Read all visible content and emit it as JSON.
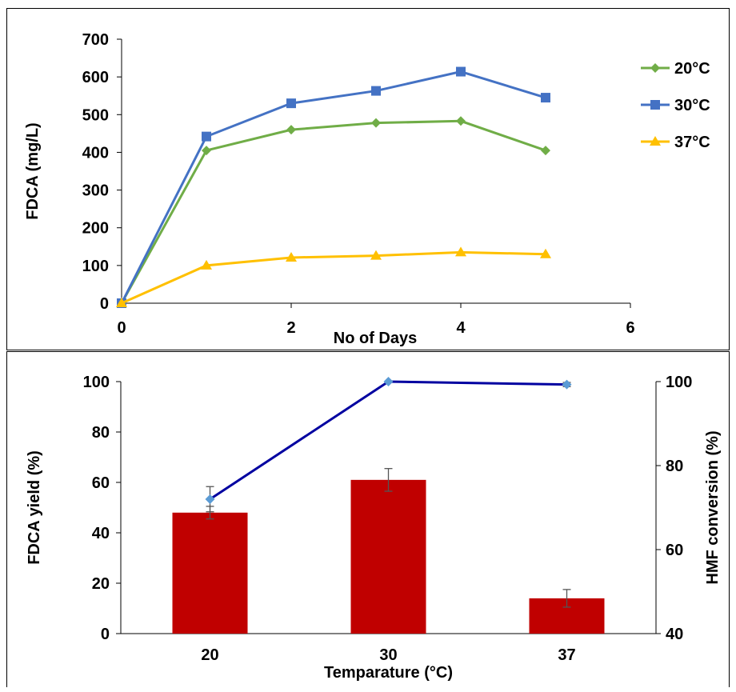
{
  "chart_data": [
    {
      "type": "line",
      "xlabel": "No of Days",
      "ylabel": "FDCA (mg/L)",
      "xlim": [
        0,
        6
      ],
      "ylim": [
        0,
        700
      ],
      "xticks": [
        "0",
        "2",
        "4",
        "6"
      ],
      "yticks": [
        "0",
        "100",
        "200",
        "300",
        "400",
        "500",
        "600",
        "700"
      ],
      "legend_position": "right",
      "grid": false,
      "x": [
        0,
        1,
        2,
        3,
        4,
        5
      ],
      "series": [
        {
          "name": "20°C",
          "color": "#70AD47",
          "marker": "diamond",
          "values": [
            0,
            405,
            460,
            478,
            483,
            405
          ]
        },
        {
          "name": "30°C",
          "color": "#4472C4",
          "marker": "square",
          "values": [
            0,
            442,
            530,
            563,
            614,
            545
          ]
        },
        {
          "name": "37°C",
          "color": "#FFC000",
          "marker": "triangle",
          "values": [
            0,
            100,
            121,
            126,
            135,
            130
          ]
        }
      ]
    },
    {
      "type": "bar",
      "xlabel": "Temparature (°C)",
      "ylabel": "FDCA yield (%)",
      "y2label": "HMF conversion (%)",
      "categories": [
        "20",
        "30",
        "37"
      ],
      "ylim": [
        0,
        100
      ],
      "y2lim": [
        40,
        100
      ],
      "yticks": [
        "0",
        "20",
        "40",
        "60",
        "80",
        "100"
      ],
      "y2ticks": [
        "40",
        "60",
        "80",
        "100"
      ],
      "grid": false,
      "series": [
        {
          "type": "bar",
          "axis": "left",
          "color": "#C00000",
          "values": [
            48,
            61,
            14
          ],
          "error": [
            2.5,
            4.5,
            3.5
          ]
        },
        {
          "type": "line",
          "axis": "right",
          "color": "#0000A0",
          "marker_color": "#5B9BD5",
          "values": [
            72,
            100,
            99.3
          ],
          "error": [
            3,
            0,
            0.5
          ]
        }
      ]
    }
  ]
}
